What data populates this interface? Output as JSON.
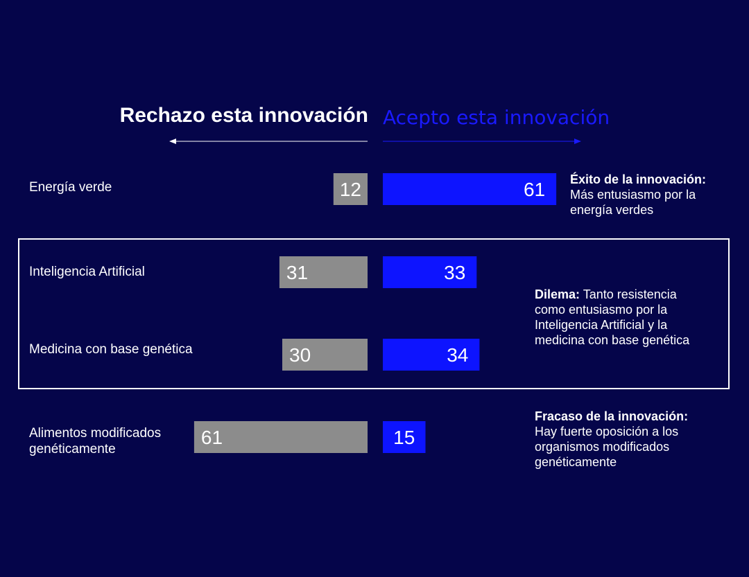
{
  "header": {
    "reject_label": "Rechazo esta innovación",
    "accept_label": "Acepto esta innovación"
  },
  "colors": {
    "background": "#05054a",
    "reject": "#8c8c8c",
    "accept": "#0d14ff",
    "accept_header": "#1a1aff"
  },
  "chart_data": {
    "type": "bar",
    "orientation": "diverging-horizontal",
    "categories": [
      "Energía verde",
      "Inteligencia Artificial",
      "Medicina con base genética",
      "Alimentos modificados genéticamente"
    ],
    "series": [
      {
        "name": "Rechazo esta innovación",
        "values": [
          12,
          31,
          30,
          61
        ]
      },
      {
        "name": "Acepto esta innovación",
        "values": [
          61,
          33,
          34,
          15
        ]
      }
    ]
  },
  "categories": {
    "c0": "Energía verde",
    "c1": "Inteligencia Artificial",
    "c2": "Medicina con base genética",
    "c3_line1": "Alimentos modificados",
    "c3_line2": "genéticamente"
  },
  "notes": {
    "success_title": "Éxito de la innovación:",
    "success_line1": "Más entusiasmo por la",
    "success_line2": "energía verdes",
    "dilemma_title": "Dilema:",
    "dilemma_line1": " Tanto resistencia",
    "dilemma_line2": "como entusiasmo por la",
    "dilemma_line3": "Inteligencia Artificial y la",
    "dilemma_line4": "medicina con base genética",
    "failure_title": "Fracaso de la innovación:",
    "failure_line1": "Hay fuerte oposición a los",
    "failure_line2": "organismos modificados",
    "failure_line3": "genéticamente"
  }
}
